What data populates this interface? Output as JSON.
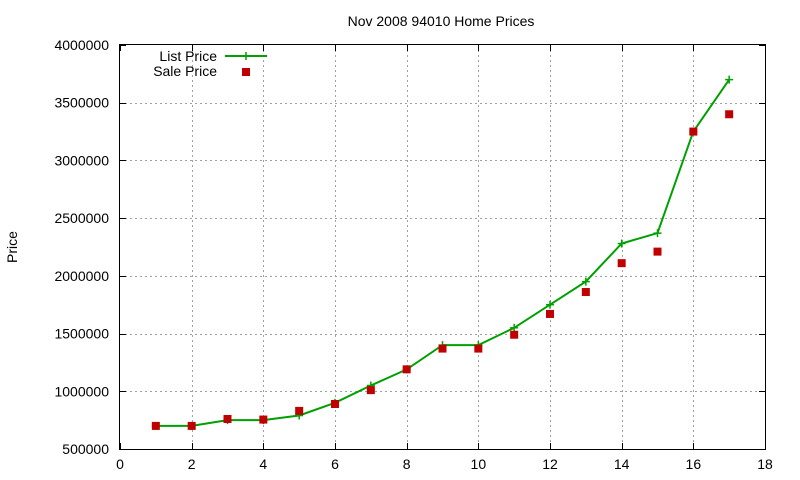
{
  "colors": {
    "list": "#00a000",
    "sale": "#c00000",
    "grid": "#a0a0a0",
    "axis": "#000000"
  },
  "chart_data": {
    "type": "line",
    "title": "Nov 2008 94010 Home Prices",
    "xlabel": "",
    "ylabel": "Price",
    "xlim": [
      0,
      18
    ],
    "ylim": [
      500000,
      4000000
    ],
    "xticks": [
      0,
      2,
      4,
      6,
      8,
      10,
      12,
      14,
      16,
      18
    ],
    "yticks": [
      500000,
      1000000,
      1500000,
      2000000,
      2500000,
      3000000,
      3500000,
      4000000
    ],
    "grid": true,
    "legend_position": "top-left",
    "x": [
      1,
      2,
      3,
      4,
      5,
      6,
      7,
      8,
      9,
      10,
      11,
      12,
      13,
      14,
      15,
      16,
      17
    ],
    "series": [
      {
        "name": "List Price",
        "style": "lines+points",
        "marker": "plus",
        "values": [
          700000,
          700000,
          750000,
          750000,
          790000,
          900000,
          1050000,
          1190000,
          1400000,
          1400000,
          1550000,
          1750000,
          1950000,
          2280000,
          2370000,
          3250000,
          3700000
        ]
      },
      {
        "name": "Sale Price",
        "style": "points",
        "marker": "square",
        "values": [
          700000,
          700000,
          760000,
          755000,
          830000,
          890000,
          1010000,
          1190000,
          1370000,
          1370000,
          1490000,
          1670000,
          1860000,
          2110000,
          2210000,
          3250000,
          3400000
        ]
      }
    ]
  }
}
